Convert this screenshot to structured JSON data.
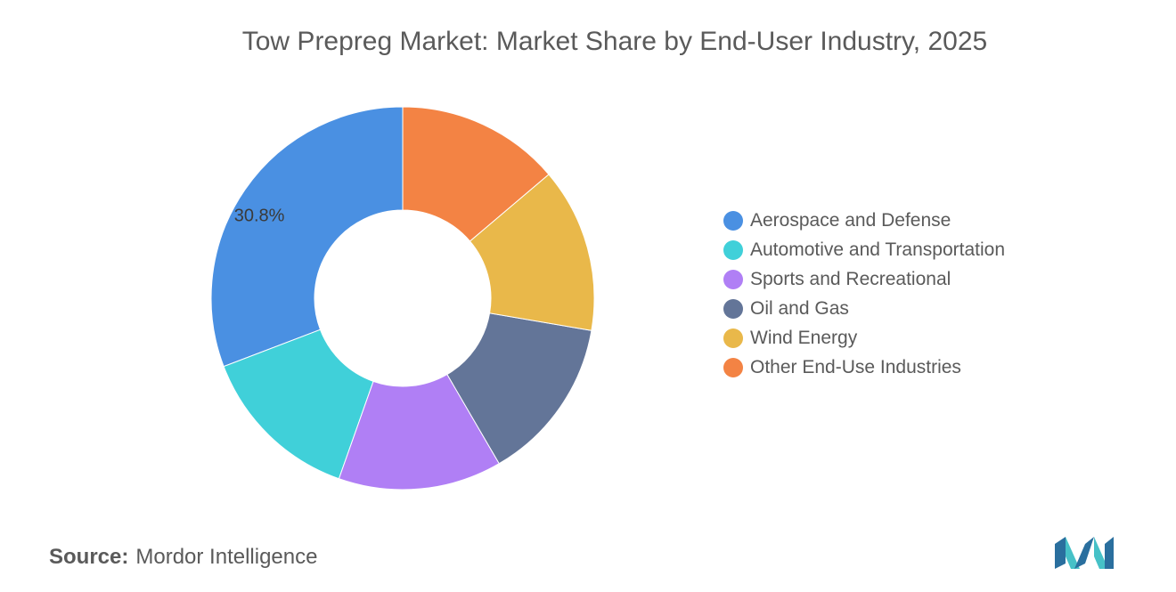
{
  "title": "Tow Prepreg Market: Market Share by End-User Industry, 2025",
  "chart_data": {
    "type": "pie",
    "donut": true,
    "categories": [
      "Aerospace and Defense",
      "Automotive and Transportation",
      "Sports and Recreational",
      "Oil and Gas",
      "Wind Energy",
      "Other End-Use Industries"
    ],
    "values": [
      30.8,
      13.8,
      13.8,
      13.9,
      13.9,
      13.8
    ],
    "colors": [
      "#4a90e2",
      "#40d0d9",
      "#b07ff5",
      "#637598",
      "#e9b84a",
      "#f38344"
    ],
    "data_labels": [
      "30.8%",
      "",
      "",
      "",
      "",
      ""
    ],
    "legend_position": "right",
    "start_angle_deg": 0,
    "direction": "counterclockwise"
  },
  "source": {
    "label": "Source:",
    "value": "Mordor Intelligence"
  },
  "logo": {
    "icon": "mordor-intelligence-logo"
  }
}
